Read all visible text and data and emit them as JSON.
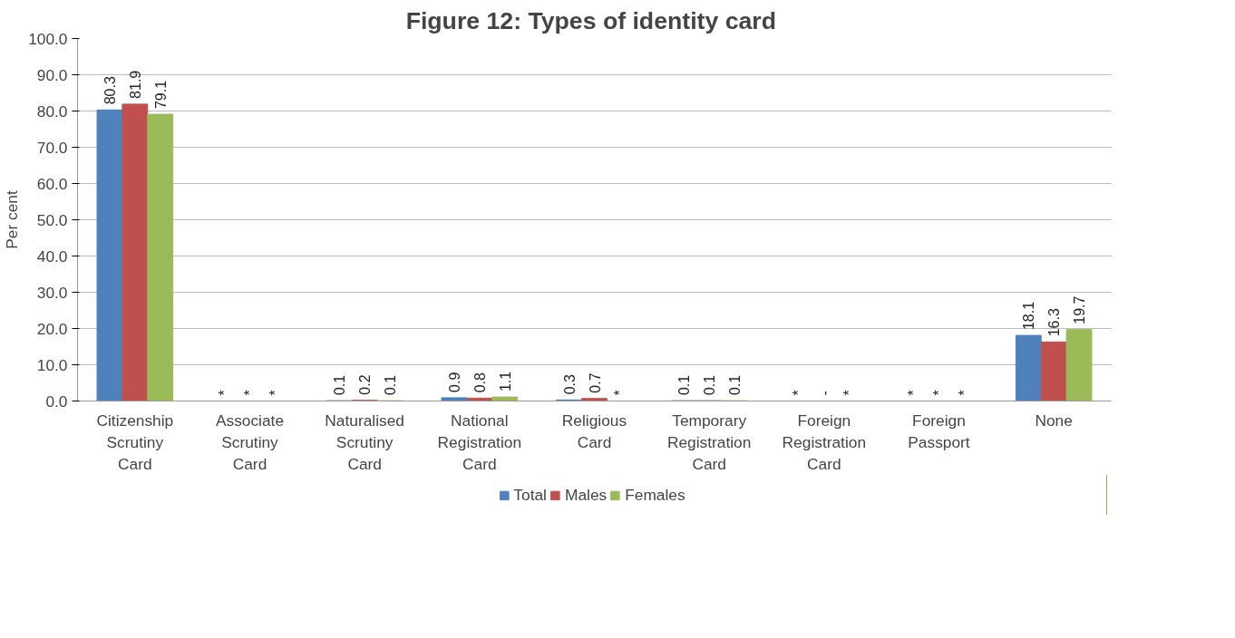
{
  "chart_data": {
    "type": "bar",
    "title": "Figure 12:  Types of identity card",
    "ylabel": "Per cent",
    "categories": [
      "Citizenship Scrutiny Card",
      "Associate Scrutiny Card",
      "Naturalised Scrutiny Card",
      "National Registration Card",
      "Religious Card",
      "Temporary Registration Card",
      "Foreign Registration Card",
      "Foreign Passport",
      "None"
    ],
    "series": [
      {
        "name": "Total",
        "color": "#4f81bd",
        "values": [
          80.3,
          0,
          0.1,
          0.9,
          0.3,
          0.1,
          0,
          0,
          18.1
        ],
        "value_labels": [
          "80.3",
          "*",
          "0.1",
          "0.9",
          "0.3",
          "0.1",
          "*",
          "*",
          "18.1"
        ]
      },
      {
        "name": "Males",
        "color": "#c0504d",
        "values": [
          81.9,
          0,
          0.2,
          0.8,
          0.7,
          0.1,
          0,
          0,
          16.3
        ],
        "value_labels": [
          "81.9",
          "*",
          "0.2",
          "0.8",
          "0.7",
          "0.1",
          "-",
          "*",
          "16.3"
        ]
      },
      {
        "name": "Females",
        "color": "#9bbb59",
        "values": [
          79.1,
          0,
          0.1,
          1.1,
          0,
          0.1,
          0,
          0,
          19.7
        ],
        "value_labels": [
          "79.1",
          "*",
          "0.1",
          "1.1",
          "*",
          "0.1",
          "*",
          "*",
          "19.7"
        ]
      }
    ],
    "ylim": [
      0,
      100
    ],
    "yticks": [
      {
        "value": 0,
        "label": "0.0"
      },
      {
        "value": 10,
        "label": "10.0"
      },
      {
        "value": 20,
        "label": "20.0"
      },
      {
        "value": 30,
        "label": "30.0"
      },
      {
        "value": 40,
        "label": "40.0"
      },
      {
        "value": 50,
        "label": "50.0"
      },
      {
        "value": 60,
        "label": "60.0"
      },
      {
        "value": 70,
        "label": "70.0"
      },
      {
        "value": 80,
        "label": "80.0"
      },
      {
        "value": 90,
        "label": "90.0"
      },
      {
        "value": 100,
        "label": "100.0"
      }
    ],
    "grid": "y",
    "legend": "bottom"
  }
}
